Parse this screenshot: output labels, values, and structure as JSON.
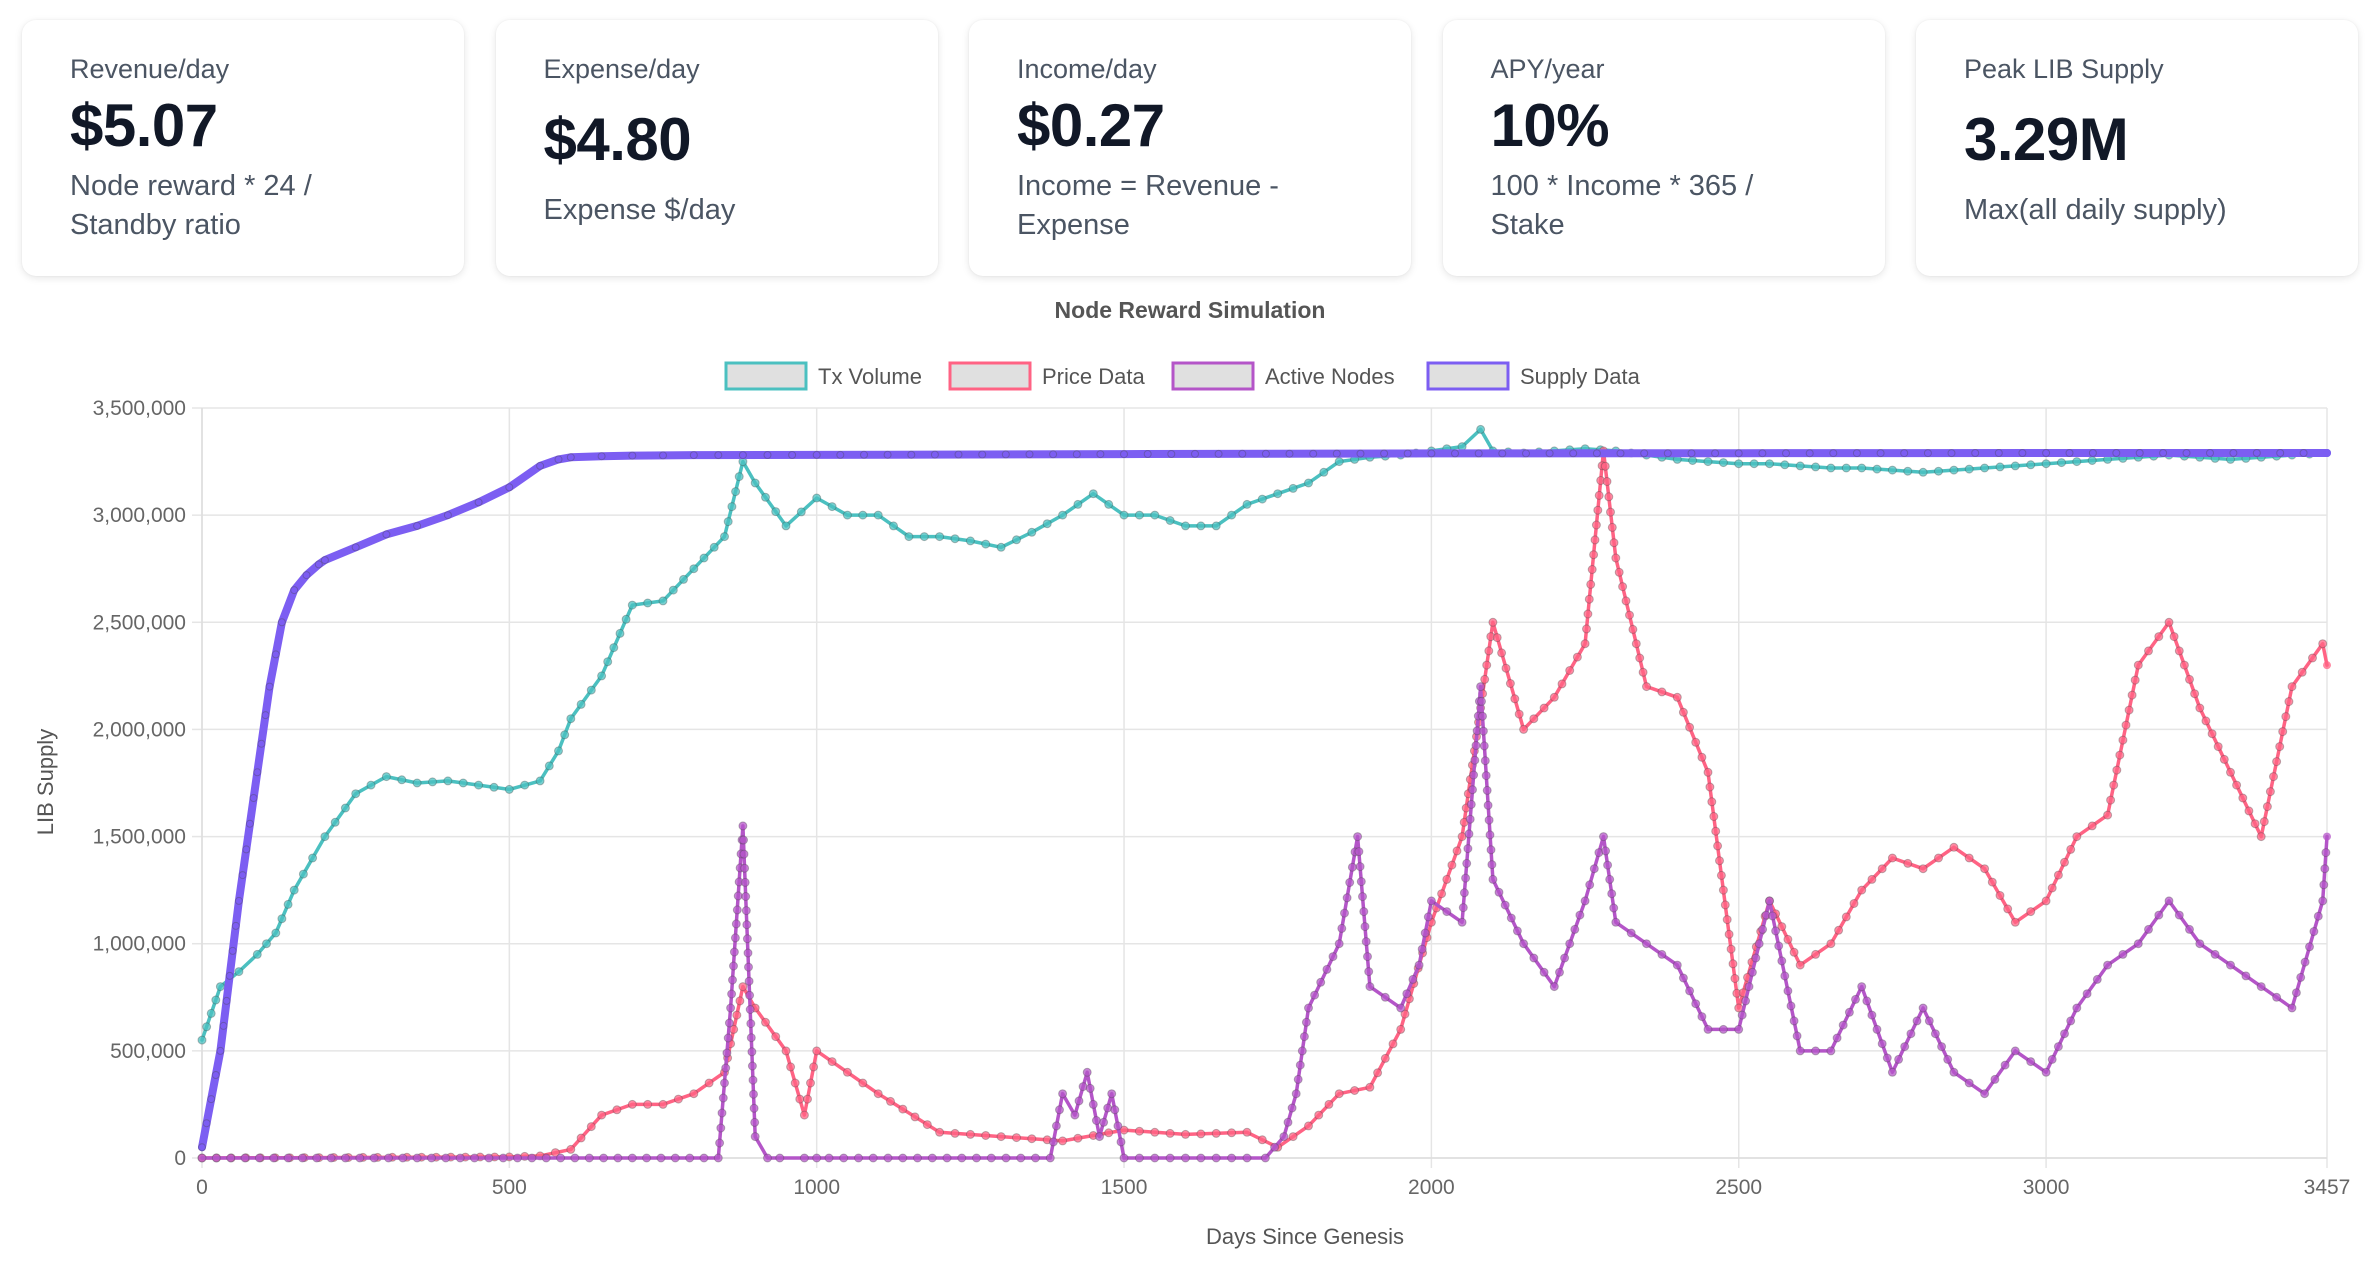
{
  "cards": [
    {
      "title": "Revenue/day",
      "value": "$5.07",
      "desc_lines": [
        "Node reward * 24 /",
        "Standby ratio"
      ]
    },
    {
      "title": "Expense/day",
      "value": "$4.80",
      "desc_lines": [
        "Expense $/day"
      ]
    },
    {
      "title": "Income/day",
      "value": "$0.27",
      "desc_lines": [
        "Income = Revenue -",
        "Expense"
      ]
    },
    {
      "title": "APY/year",
      "value": "10%",
      "desc_lines": [
        "100 * Income * 365 /",
        "Stake"
      ]
    },
    {
      "title": "Peak LIB Supply",
      "value": "3.29M",
      "desc_lines": [
        "Max(all daily supply)"
      ]
    }
  ],
  "chart_data": {
    "type": "line",
    "title": "Node Reward Simulation",
    "xlabel": "Days Since Genesis",
    "ylabel": "LIB Supply",
    "xlim": [
      0,
      3457
    ],
    "ylim": [
      0,
      3500000
    ],
    "x_ticks": [
      "0",
      "500",
      "1000",
      "1500",
      "2000",
      "2500",
      "3000",
      "3457"
    ],
    "y_ticks": [
      "0",
      "500,000",
      "1,000,000",
      "1,500,000",
      "2,000,000",
      "2,500,000",
      "3,000,000",
      "3,500,000"
    ],
    "grid": true,
    "legend_position": "top",
    "series": [
      {
        "name": "Tx Volume",
        "color": "#4bc0c0",
        "x": [
          0,
          30,
          60,
          90,
          120,
          150,
          180,
          200,
          250,
          300,
          350,
          400,
          450,
          500,
          550,
          580,
          600,
          650,
          700,
          750,
          800,
          850,
          880,
          900,
          950,
          1000,
          1050,
          1100,
          1150,
          1200,
          1250,
          1300,
          1350,
          1400,
          1450,
          1500,
          1550,
          1600,
          1650,
          1700,
          1750,
          1800,
          1850,
          1900,
          1950,
          2000,
          2050,
          2080,
          2100,
          2150,
          2200,
          2250,
          2300,
          2350,
          2400,
          2450,
          2500,
          2550,
          2600,
          2650,
          2700,
          2750,
          2800,
          2850,
          2900,
          2950,
          3000,
          3050,
          3100,
          3150,
          3200,
          3250,
          3300,
          3350,
          3400,
          3457
        ],
        "y": [
          550000,
          800000,
          870000,
          950000,
          1050000,
          1250000,
          1400000,
          1500000,
          1700000,
          1780000,
          1750000,
          1760000,
          1740000,
          1720000,
          1760000,
          1900000,
          2050000,
          2250000,
          2580000,
          2600000,
          2750000,
          2900000,
          3250000,
          3150000,
          2950000,
          3080000,
          3000000,
          3000000,
          2900000,
          2900000,
          2880000,
          2850000,
          2920000,
          3000000,
          3100000,
          3000000,
          3000000,
          2950000,
          2950000,
          3050000,
          3100000,
          3150000,
          3250000,
          3270000,
          3280000,
          3300000,
          3320000,
          3400000,
          3300000,
          3290000,
          3300000,
          3310000,
          3300000,
          3280000,
          3260000,
          3250000,
          3240000,
          3240000,
          3230000,
          3220000,
          3220000,
          3210000,
          3200000,
          3210000,
          3220000,
          3230000,
          3240000,
          3250000,
          3260000,
          3270000,
          3280000,
          3270000,
          3260000,
          3270000,
          3280000,
          3290000
        ]
      },
      {
        "name": "Price Data",
        "color": "#ff6384",
        "x": [
          0,
          500,
          550,
          600,
          650,
          700,
          750,
          800,
          850,
          880,
          900,
          950,
          980,
          1000,
          1050,
          1100,
          1200,
          1300,
          1400,
          1500,
          1600,
          1700,
          1750,
          1800,
          1850,
          1900,
          1950,
          2000,
          2050,
          2100,
          2150,
          2200,
          2250,
          2280,
          2300,
          2350,
          2400,
          2450,
          2500,
          2550,
          2600,
          2650,
          2700,
          2750,
          2800,
          2850,
          2900,
          2950,
          3000,
          3050,
          3100,
          3150,
          3200,
          3250,
          3300,
          3350,
          3400,
          3450,
          3457
        ],
        "y": [
          0,
          5000,
          10000,
          40000,
          200000,
          250000,
          250000,
          300000,
          400000,
          800000,
          700000,
          500000,
          200000,
          500000,
          400000,
          300000,
          120000,
          100000,
          80000,
          130000,
          110000,
          120000,
          50000,
          150000,
          300000,
          330000,
          600000,
          1100000,
          1500000,
          2500000,
          2000000,
          2150000,
          2400000,
          3300000,
          2800000,
          2200000,
          2150000,
          1800000,
          700000,
          1200000,
          900000,
          1000000,
          1250000,
          1400000,
          1350000,
          1450000,
          1350000,
          1100000,
          1200000,
          1500000,
          1600000,
          2300000,
          2500000,
          2100000,
          1800000,
          1500000,
          2200000,
          2400000,
          2300000
        ]
      },
      {
        "name": "Active Nodes",
        "color": "#b455c8",
        "x": [
          0,
          840,
          860,
          880,
          900,
          920,
          940,
          980,
          1000,
          1020,
          1380,
          1400,
          1420,
          1440,
          1460,
          1480,
          1500,
          1700,
          1730,
          1760,
          1780,
          1800,
          1850,
          1880,
          1900,
          1950,
          1980,
          2000,
          2050,
          2080,
          2100,
          2150,
          2200,
          2250,
          2280,
          2300,
          2350,
          2400,
          2450,
          2500,
          2550,
          2600,
          2650,
          2700,
          2750,
          2800,
          2850,
          2900,
          2950,
          3000,
          3050,
          3100,
          3150,
          3200,
          3250,
          3300,
          3350,
          3400,
          3450,
          3457
        ],
        "y": [
          0,
          0,
          700000,
          1550000,
          100000,
          0,
          0,
          0,
          0,
          0,
          0,
          300000,
          200000,
          400000,
          100000,
          300000,
          0,
          0,
          0,
          100000,
          300000,
          700000,
          1000000,
          1500000,
          800000,
          700000,
          900000,
          1200000,
          1100000,
          2200000,
          1300000,
          1000000,
          800000,
          1200000,
          1500000,
          1100000,
          1000000,
          900000,
          600000,
          600000,
          1200000,
          500000,
          500000,
          800000,
          400000,
          700000,
          400000,
          300000,
          500000,
          400000,
          700000,
          900000,
          1000000,
          1200000,
          1000000,
          900000,
          800000,
          700000,
          1200000,
          1500000
        ]
      },
      {
        "name": "Supply Data",
        "color": "#7c5ef2",
        "x": [
          0,
          30,
          60,
          90,
          110,
          130,
          150,
          170,
          190,
          200,
          250,
          300,
          350,
          400,
          450,
          500,
          550,
          580,
          600,
          650,
          700,
          800,
          1000,
          1500,
          2000,
          2500,
          3000,
          3457
        ],
        "y": [
          50000,
          500000,
          1200000,
          1800000,
          2200000,
          2500000,
          2650000,
          2720000,
          2770000,
          2790000,
          2850000,
          2910000,
          2950000,
          3000000,
          3060000,
          3130000,
          3230000,
          3260000,
          3270000,
          3275000,
          3278000,
          3280000,
          3281000,
          3285000,
          3288000,
          3289000,
          3290000,
          3290000
        ]
      }
    ]
  }
}
